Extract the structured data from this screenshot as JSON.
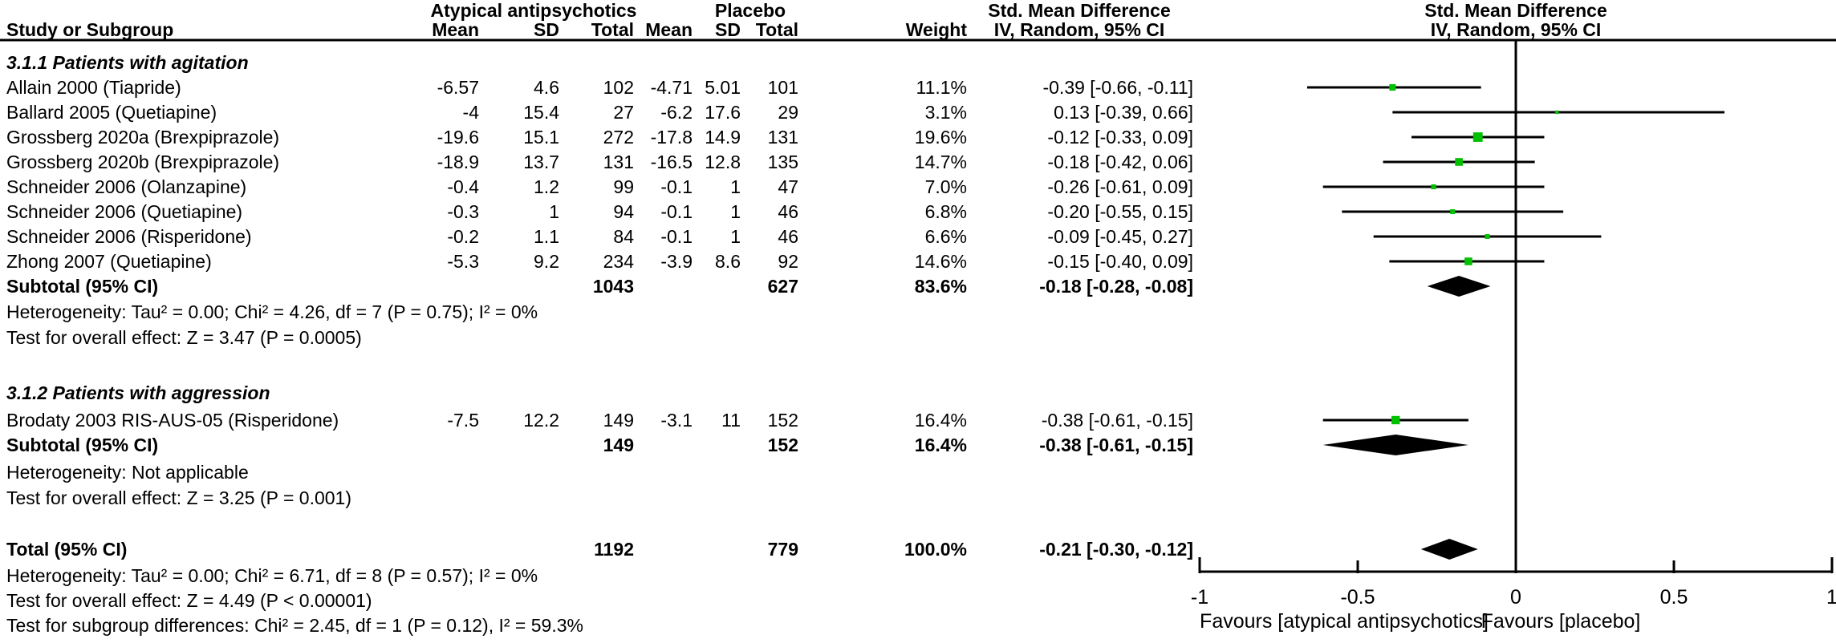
{
  "header": {
    "group1": "Atypical antipsychotics",
    "group2": "Placebo",
    "effect": "Std. Mean Difference",
    "effect_sub": "IV, Random, 95% CI",
    "study_col": "Study or Subgroup",
    "mean": "Mean",
    "sd": "SD",
    "total": "Total",
    "weight": "Weight"
  },
  "chart_data": {
    "type": "forest",
    "effect_measure": "Std. Mean Difference, IV, Random, 95% CI",
    "xlim": [
      -1,
      1
    ],
    "tick_values": [
      -1,
      -0.5,
      0,
      0.5,
      1
    ],
    "tick_labels": [
      "-1",
      "-0.5",
      "0",
      "0.5",
      "1"
    ],
    "favours_left": "Favours [atypical antipsychotics]",
    "favours_right": "Favours [placebo]",
    "colors": {
      "marker": "#00C000",
      "line": "#000000",
      "diamond": "#000000",
      "background": "#FFFFFF"
    },
    "sections": [
      {
        "label": "3.1.1 Patients with agitation",
        "studies": [
          {
            "study": "Allain 2000 (Tiapride)",
            "mean1": "-6.57",
            "sd1": "4.6",
            "total1": "102",
            "mean2": "-4.71",
            "sd2": "5.01",
            "total2": "101",
            "weight": "11.1%",
            "ci": "-0.39 [-0.66, -0.11]",
            "est": -0.39,
            "lo": -0.66,
            "hi": -0.11,
            "w": 11.1
          },
          {
            "study": "Ballard 2005 (Quetiapine)",
            "mean1": "-4",
            "sd1": "15.4",
            "total1": "27",
            "mean2": "-6.2",
            "sd2": "17.6",
            "total2": "29",
            "weight": "3.1%",
            "ci": "0.13 [-0.39, 0.66]",
            "est": 0.13,
            "lo": -0.39,
            "hi": 0.66,
            "w": 3.1
          },
          {
            "study": "Grossberg 2020a (Brexpiprazole)",
            "mean1": "-19.6",
            "sd1": "15.1",
            "total1": "272",
            "mean2": "-17.8",
            "sd2": "14.9",
            "total2": "131",
            "weight": "19.6%",
            "ci": "-0.12 [-0.33, 0.09]",
            "est": -0.12,
            "lo": -0.33,
            "hi": 0.09,
            "w": 19.6
          },
          {
            "study": "Grossberg 2020b (Brexpiprazole)",
            "mean1": "-18.9",
            "sd1": "13.7",
            "total1": "131",
            "mean2": "-16.5",
            "sd2": "12.8",
            "total2": "135",
            "weight": "14.7%",
            "ci": "-0.18 [-0.42, 0.06]",
            "est": -0.18,
            "lo": -0.42,
            "hi": 0.06,
            "w": 14.7
          },
          {
            "study": "Schneider 2006 (Olanzapine)",
            "mean1": "-0.4",
            "sd1": "1.2",
            "total1": "99",
            "mean2": "-0.1",
            "sd2": "1",
            "total2": "47",
            "weight": "7.0%",
            "ci": "-0.26 [-0.61, 0.09]",
            "est": -0.26,
            "lo": -0.61,
            "hi": 0.09,
            "w": 7.0
          },
          {
            "study": "Schneider 2006 (Quetiapine)",
            "mean1": "-0.3",
            "sd1": "1",
            "total1": "94",
            "mean2": "-0.1",
            "sd2": "1",
            "total2": "46",
            "weight": "6.8%",
            "ci": "-0.20 [-0.55, 0.15]",
            "est": -0.2,
            "lo": -0.55,
            "hi": 0.15,
            "w": 6.8
          },
          {
            "study": "Schneider 2006 (Risperidone)",
            "mean1": "-0.2",
            "sd1": "1.1",
            "total1": "84",
            "mean2": "-0.1",
            "sd2": "1",
            "total2": "46",
            "weight": "6.6%",
            "ci": "-0.09 [-0.45, 0.27]",
            "est": -0.09,
            "lo": -0.45,
            "hi": 0.27,
            "w": 6.6
          },
          {
            "study": "Zhong 2007 (Quetiapine)",
            "mean1": "-5.3",
            "sd1": "9.2",
            "total1": "234",
            "mean2": "-3.9",
            "sd2": "8.6",
            "total2": "92",
            "weight": "14.6%",
            "ci": "-0.15 [-0.40, 0.09]",
            "est": -0.15,
            "lo": -0.4,
            "hi": 0.09,
            "w": 14.6
          }
        ],
        "subtotal": {
          "label": "Subtotal (95% CI)",
          "total1": "1043",
          "total2": "627",
          "weight": "83.6%",
          "ci": "-0.18 [-0.28, -0.08]",
          "est": -0.18,
          "lo": -0.28,
          "hi": -0.08
        },
        "heterogeneity": "Heterogeneity: Tau² = 0.00; Chi² = 4.26, df = 7 (P = 0.75); I² = 0%",
        "overall_effect": "Test for overall effect: Z = 3.47 (P = 0.0005)"
      },
      {
        "label": "3.1.2 Patients with aggression",
        "studies": [
          {
            "study": "Brodaty 2003 RIS-AUS-05 (Risperidone)",
            "mean1": "-7.5",
            "sd1": "12.2",
            "total1": "149",
            "mean2": "-3.1",
            "sd2": "11",
            "total2": "152",
            "weight": "16.4%",
            "ci": "-0.38 [-0.61, -0.15]",
            "est": -0.38,
            "lo": -0.61,
            "hi": -0.15,
            "w": 16.4
          }
        ],
        "subtotal": {
          "label": "Subtotal (95% CI)",
          "total1": "149",
          "total2": "152",
          "weight": "16.4%",
          "ci": "-0.38 [-0.61, -0.15]",
          "est": -0.38,
          "lo": -0.61,
          "hi": -0.15
        },
        "heterogeneity": "Heterogeneity: Not applicable",
        "overall_effect": "Test for overall effect: Z = 3.25 (P = 0.001)"
      }
    ],
    "total": {
      "label": "Total (95% CI)",
      "total1": "1192",
      "total2": "779",
      "weight": "100.0%",
      "ci": "-0.21 [-0.30, -0.12]",
      "est": -0.21,
      "lo": -0.3,
      "hi": -0.12
    },
    "total_heterogeneity": "Heterogeneity: Tau² = 0.00; Chi² = 6.71, df = 8 (P = 0.57); I² = 0%",
    "total_overall_effect": "Test for overall effect: Z = 4.49 (P < 0.00001)",
    "subgroup_differences": "Test for subgroup differences: Chi² = 2.45, df = 1 (P = 0.12), I² = 59.3%"
  }
}
